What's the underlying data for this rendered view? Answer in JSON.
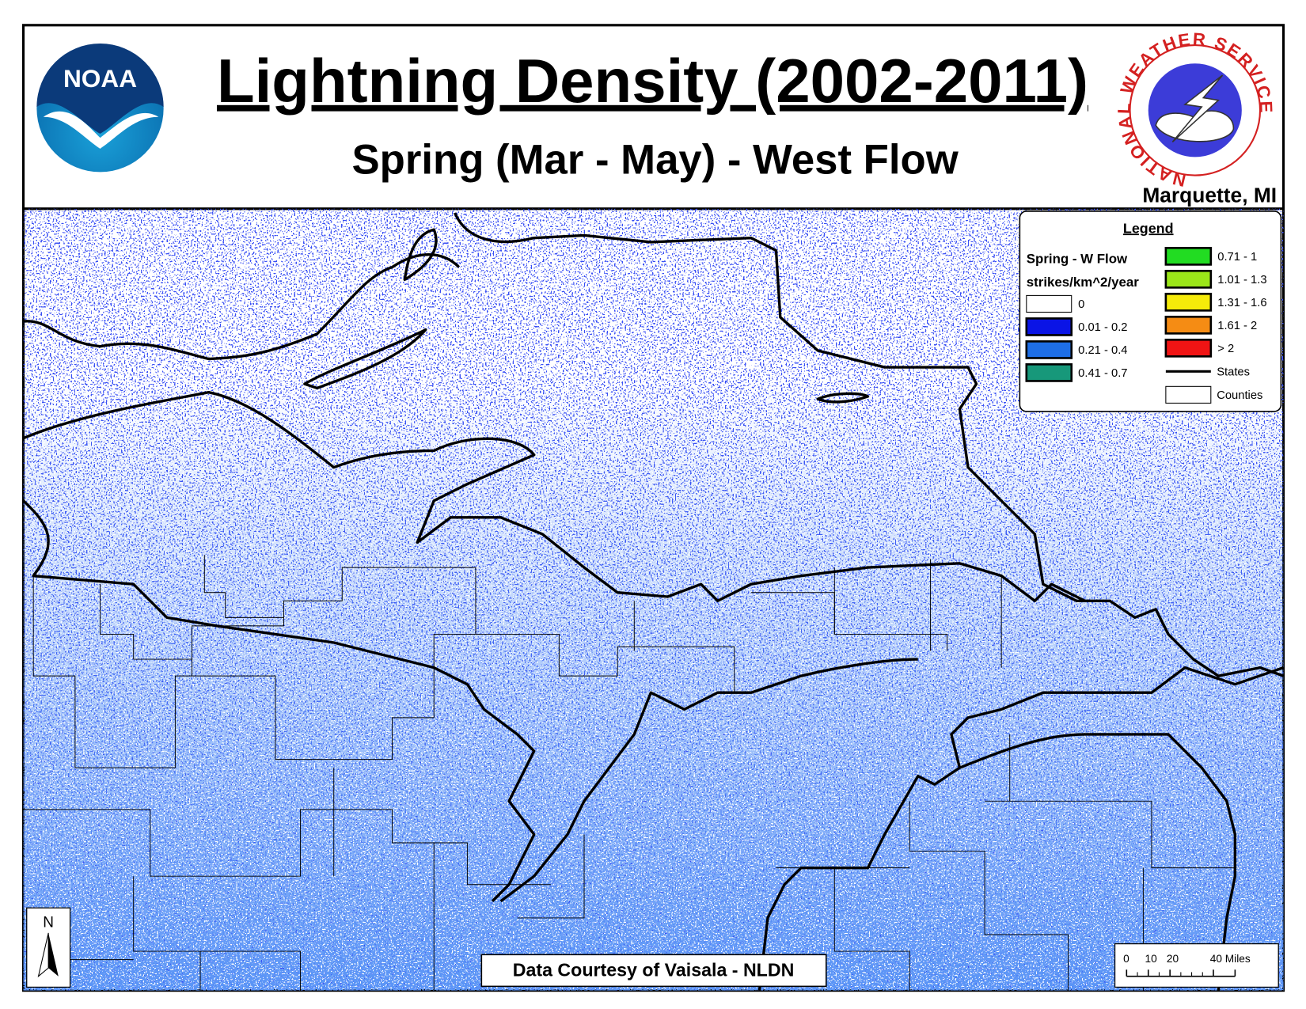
{
  "header": {
    "title": "Lightning Density (2002-2011)",
    "subtitle": "Spring (Mar - May) - West Flow",
    "location": "Marquette, MI",
    "noaa_logo": "NOAA",
    "nws_logo": "NATIONAL WEATHER SERVICE"
  },
  "legend": {
    "title": "Legend",
    "layer": "Spring - W Flow",
    "units": "strikes/km^2/year",
    "classes": [
      {
        "label": "0",
        "color": "#ffffff"
      },
      {
        "label": "0.01 - 0.2",
        "color": "#0a14e6"
      },
      {
        "label": "0.21 - 0.4",
        "color": "#1e6ee6"
      },
      {
        "label": "0.41 - 0.7",
        "color": "#17987a"
      },
      {
        "label": "0.71 - 1",
        "color": "#22dc22"
      },
      {
        "label": "1.01 - 1.3",
        "color": "#9be619"
      },
      {
        "label": "1.31 - 1.6",
        "color": "#f5eb0a"
      },
      {
        "label": "1.61 - 2",
        "color": "#f58c14"
      },
      {
        "label": "> 2",
        "color": "#f01414"
      }
    ],
    "states": "States",
    "counties": "Counties"
  },
  "credit": "Data Courtesy of Vaisala - NLDN",
  "north_arrow": "N",
  "scale_bar": [
    "0",
    "10",
    "20",
    "40 Miles"
  ]
}
